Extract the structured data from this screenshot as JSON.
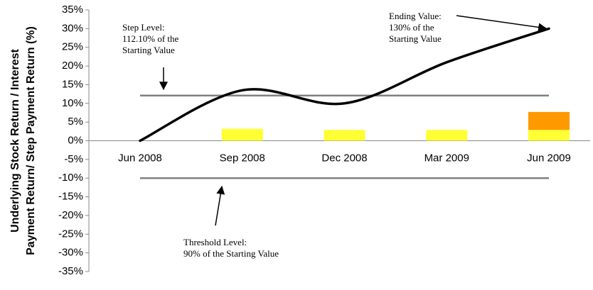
{
  "chart_data": {
    "type": "line",
    "y_label": [
      "Underlying Stock Return / Interest",
      "Payment Return/ Step Payment Return (%)"
    ],
    "categories": [
      "Jun 2008",
      "Sep 2008",
      "Dec 2008",
      "Mar 2009",
      "Jun 2009"
    ],
    "series": [
      {
        "color": "#000000",
        "values": [
          0,
          13.5,
          10,
          21,
          30
        ]
      }
    ],
    "bar_series": [
      {
        "color": "#ffff33",
        "values": [
          null,
          3.2,
          2.9,
          2.9,
          2.9
        ]
      },
      {
        "color": "#ff9900",
        "values": [
          null,
          null,
          null,
          null,
          4.8
        ]
      }
    ],
    "reference_lines": [
      {
        "value": 12.1,
        "color": "#808080"
      },
      {
        "value": -10,
        "color": "#808080"
      }
    ],
    "annotations": [
      {
        "lines": [
          "Step Level:",
          "112.10% of the",
          "Starting Value"
        ]
      },
      {
        "lines": [
          "Ending Value:",
          "130% of the",
          "Starting Value"
        ]
      },
      {
        "lines": [
          "Threshold Level:",
          "90% of the Starting Value"
        ]
      }
    ],
    "ylim": [
      -35,
      35
    ],
    "yticks": [
      {
        "value": -35,
        "label": "-35%"
      },
      {
        "value": -30,
        "label": "-30%"
      },
      {
        "value": -25,
        "label": "-25%"
      },
      {
        "value": -20,
        "label": "-20%"
      },
      {
        "value": -15,
        "label": "-15%"
      },
      {
        "value": -10,
        "label": "-10%"
      },
      {
        "value": -5,
        "label": "-5%"
      },
      {
        "value": 0,
        "label": "0%"
      },
      {
        "value": 5,
        "label": "5%"
      },
      {
        "value": 10,
        "label": "10%"
      },
      {
        "value": 15,
        "label": "15%"
      },
      {
        "value": 20,
        "label": "20%"
      },
      {
        "value": 25,
        "label": "25%"
      },
      {
        "value": 30,
        "label": "30%"
      },
      {
        "value": 35,
        "label": "35%"
      }
    ]
  }
}
